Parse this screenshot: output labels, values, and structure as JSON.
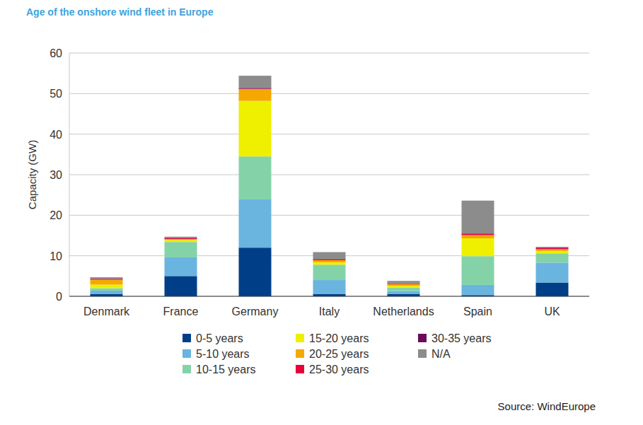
{
  "chart_data": {
    "type": "bar",
    "title": "Age of the onshore wind fleet in Europe",
    "y_label": "Capacity (GW)",
    "source": "Source: WindEurope",
    "categories": [
      "Denmark",
      "France",
      "Germany",
      "Italy",
      "Netherlands",
      "Spain",
      "UK"
    ],
    "series": [
      {
        "name": "0-5 years",
        "color": "#003f87",
        "values": [
          0.6,
          5.0,
          12.0,
          0.6,
          0.6,
          0.3,
          3.4
        ]
      },
      {
        "name": "5-10 years",
        "color": "#6ab4e0",
        "values": [
          0.8,
          4.6,
          11.9,
          3.4,
          0.7,
          2.5,
          4.9
        ]
      },
      {
        "name": "10-15 years",
        "color": "#84d3a8",
        "values": [
          0.6,
          3.8,
          10.6,
          3.8,
          0.8,
          7.1,
          2.3
        ]
      },
      {
        "name": "15-20 years",
        "color": "#eef000",
        "values": [
          0.9,
          0.5,
          13.7,
          0.6,
          0.5,
          4.4,
          0.6
        ]
      },
      {
        "name": "20-25 years",
        "color": "#f5a800",
        "values": [
          1.2,
          0.2,
          2.9,
          0.5,
          0.4,
          0.8,
          0.4
        ]
      },
      {
        "name": "25-30 years",
        "color": "#e8003a",
        "values": [
          0.2,
          0.2,
          0.1,
          0.2,
          0.1,
          0.3,
          0.3
        ]
      },
      {
        "name": "30-35 years",
        "color": "#6b0a5a",
        "values": [
          0.1,
          0.1,
          0.2,
          0.1,
          0.1,
          0.1,
          0.1
        ]
      },
      {
        "name": "N/A",
        "color": "#8c8c8c",
        "values": [
          0.3,
          0.3,
          3.0,
          1.7,
          0.6,
          8.1,
          0.2
        ]
      }
    ],
    "stacked": true,
    "grid": true,
    "legend": "bottom",
    "ylim": [
      0,
      60
    ],
    "yticks": [
      0,
      10,
      20,
      30,
      40,
      50,
      60
    ]
  }
}
